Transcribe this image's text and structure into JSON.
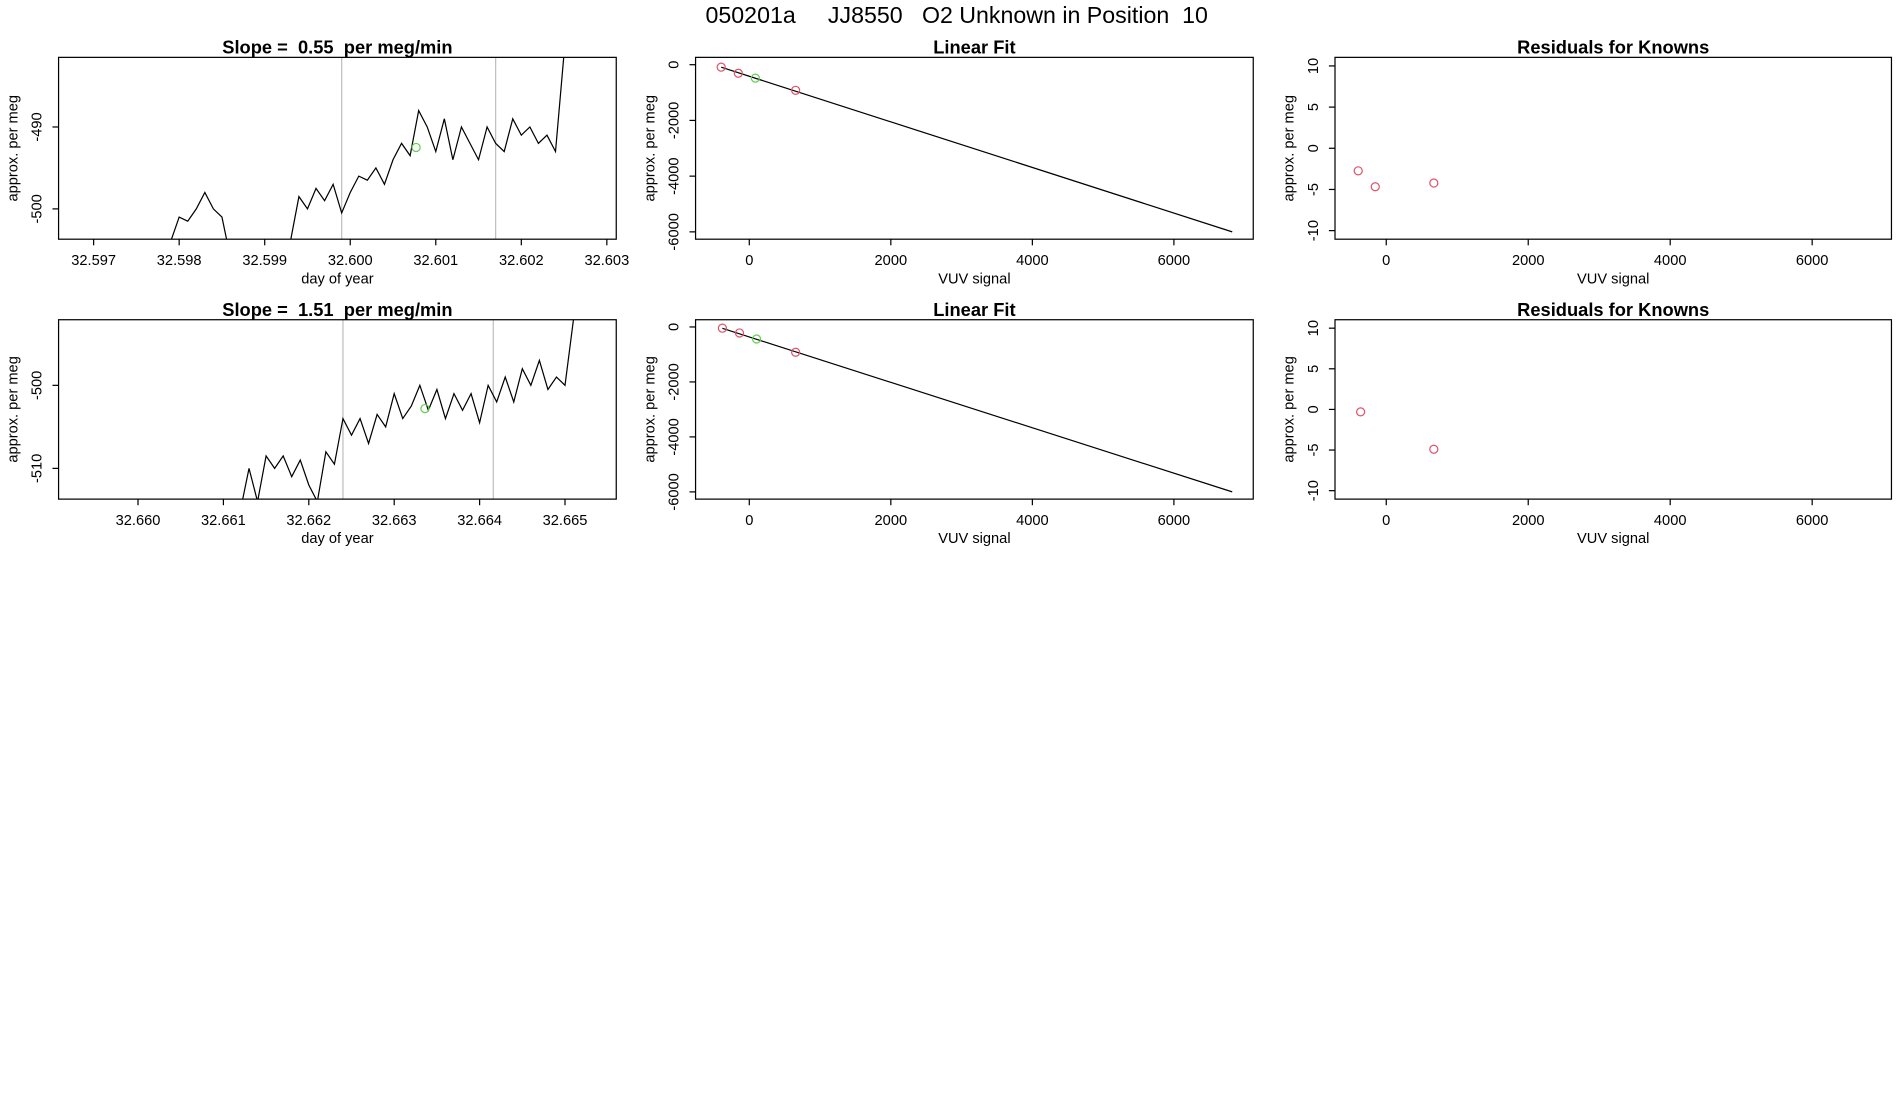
{
  "title": "050201a     JJ8550   O2 Unknown in Position  10",
  "chart_data": [
    {
      "type": "line",
      "title": "Slope =  0.55  per meg/min",
      "xlabel": "day of year",
      "ylabel": "approx. per meg",
      "xlim": [
        32.59659,
        32.60311
      ],
      "ylim": [
        -503.7,
        -481.5
      ],
      "xticks": [
        32.597,
        32.598,
        32.599,
        {
          "value": 32.6,
          "label": "32.600"
        },
        32.601,
        32.602,
        32.603
      ],
      "yticks": [
        -500,
        -490
      ],
      "vlines": [
        32.5999,
        32.6017
      ],
      "vline_color": "#bebebe",
      "series": [
        {
          "marker": "line",
          "color": "#000000",
          "x": [
            32.5979,
            32.598,
            32.5981,
            32.5982,
            32.5983,
            32.5984,
            32.5985,
            32.5986,
            32.5993,
            32.5994,
            32.5995,
            32.5996,
            32.5997,
            32.5998,
            32.5999,
            32.6,
            32.6001,
            32.6002,
            32.6003,
            32.6004,
            32.6005,
            32.6006,
            32.6007,
            32.6008,
            32.6009,
            32.601,
            32.6011,
            32.6012,
            32.6013,
            32.6014,
            32.6015,
            32.6016,
            32.6017,
            32.6018,
            32.6019,
            32.602,
            32.6021,
            32.6022,
            32.6023,
            32.6024,
            32.6025
          ],
          "values": [
            -504,
            -501,
            -501.5,
            -500,
            -498,
            -500,
            -501,
            -506,
            -504,
            -498.5,
            -500,
            -497.5,
            -499,
            -497,
            -500.5,
            -498,
            -496,
            -496.5,
            -495,
            -497,
            -494,
            -492,
            -493.5,
            -488,
            -490,
            -493,
            -489,
            -494,
            -490,
            -492,
            -494,
            -490,
            -492,
            -493,
            -489,
            -491,
            -490,
            -492,
            -491,
            -493,
            -481
          ]
        },
        {
          "marker": "circle",
          "color": "#61d04f",
          "x": [
            32.60077
          ],
          "values": [
            -492.5
          ]
        }
      ]
    },
    {
      "type": "scatter",
      "title": "Linear Fit",
      "xlabel": "VUV signal",
      "ylabel": "approx. per meg",
      "xlim": [
        -759,
        7121
      ],
      "ylim": [
        -6263,
        263
      ],
      "xticks": [
        0,
        2000,
        4000,
        6000
      ],
      "yticks": [
        0,
        -2000,
        -4000,
        -6000
      ],
      "series": [
        {
          "marker": "line",
          "color": "#000000",
          "x": [
            -397,
            6824
          ],
          "values": [
            -90,
            -6000
          ]
        },
        {
          "marker": "circle",
          "color": "#df536b",
          "x": [
            -397,
            -155,
            655
          ],
          "values": [
            -88,
            -307,
            -920
          ]
        },
        {
          "marker": "circle",
          "color": "#61d04f",
          "x": [
            86
          ],
          "values": [
            -482
          ]
        }
      ]
    },
    {
      "type": "scatter",
      "title": "Residuals for Knowns",
      "xlabel": "VUV signal",
      "ylabel": "approx. per meg",
      "xlim": [
        -722,
        7117
      ],
      "ylim": [
        -11.04,
        11.04
      ],
      "xticks": [
        0,
        2000,
        4000,
        6000
      ],
      "yticks": [
        10,
        5,
        0,
        -5,
        -10
      ],
      "series": [
        {
          "marker": "circle",
          "color": "#df536b",
          "x": [
            -395,
            -155,
            670
          ],
          "values": [
            -2.74,
            -4.67,
            -4.22
          ]
        }
      ]
    },
    {
      "type": "line",
      "title": "Slope =  1.51  per meg/min",
      "xlabel": "day of year",
      "ylabel": "approx. per meg",
      "xlim": [
        32.65907,
        32.6656
      ],
      "ylim": [
        -513.7,
        -492.1
      ],
      "xticks": [
        {
          "value": 32.66,
          "label": "32.660"
        },
        32.661,
        32.662,
        32.663,
        32.664,
        32.665
      ],
      "yticks": [
        -500,
        -510
      ],
      "vlines": [
        32.6624,
        32.66416
      ],
      "vline_color": "#bebebe",
      "series": [
        {
          "marker": "line",
          "color": "#000000",
          "x": [
            32.6612,
            32.6613,
            32.6614,
            32.6615,
            32.6616,
            32.6617,
            32.6618,
            32.6619,
            32.662,
            32.6621,
            32.6622,
            32.6623,
            32.6624,
            32.6625,
            32.6626,
            32.6627,
            32.6628,
            32.6629,
            32.663,
            32.6631,
            32.6632,
            32.6633,
            32.6634,
            32.6635,
            32.6636,
            32.6637,
            32.6638,
            32.6639,
            32.664,
            32.6641,
            32.6642,
            32.6643,
            32.6644,
            32.6645,
            32.6646,
            32.6647,
            32.6648,
            32.6649,
            32.665,
            32.6651
          ],
          "values": [
            -515,
            -510,
            -514,
            -508.5,
            -510,
            -508.5,
            -511,
            -509,
            -512,
            -514,
            -508,
            -509.5,
            -504,
            -506,
            -504,
            -507,
            -503.5,
            -505,
            -501,
            -504,
            -502.5,
            -500,
            -503,
            -500.5,
            -504,
            -501,
            -503,
            -501,
            -504.5,
            -500,
            -502,
            -499,
            -502,
            -498,
            -500,
            -497,
            -500.5,
            -499,
            -500,
            -492
          ]
        },
        {
          "marker": "circle",
          "color": "#61d04f",
          "x": [
            32.66336
          ],
          "values": [
            -502.8
          ]
        }
      ]
    },
    {
      "type": "scatter",
      "title": "Linear Fit",
      "xlabel": "VUV signal",
      "ylabel": "approx. per meg",
      "xlim": [
        -759,
        7121
      ],
      "ylim": [
        -6263,
        263
      ],
      "xticks": [
        0,
        2000,
        4000,
        6000
      ],
      "yticks": [
        0,
        -2000,
        -4000,
        -6000
      ],
      "series": [
        {
          "marker": "line",
          "color": "#000000",
          "x": [
            -380,
            6824
          ],
          "values": [
            -50,
            -6000
          ]
        },
        {
          "marker": "circle",
          "color": "#df536b",
          "x": [
            -380,
            -138,
            655
          ],
          "values": [
            -44,
            -219,
            -920
          ]
        },
        {
          "marker": "circle",
          "color": "#61d04f",
          "x": [
            103
          ],
          "values": [
            -438
          ]
        }
      ]
    },
    {
      "type": "scatter",
      "title": "Residuals for Knowns",
      "xlabel": "VUV signal",
      "ylabel": "approx. per meg",
      "xlim": [
        -722,
        7117
      ],
      "ylim": [
        -11.04,
        11.04
      ],
      "xticks": [
        0,
        2000,
        4000,
        6000
      ],
      "yticks": [
        10,
        5,
        0,
        -5,
        -10
      ],
      "series": [
        {
          "marker": "circle",
          "color": "#df536b",
          "x": [
            -361,
            670
          ],
          "values": [
            -0.3,
            -4.9
          ]
        }
      ]
    }
  ]
}
